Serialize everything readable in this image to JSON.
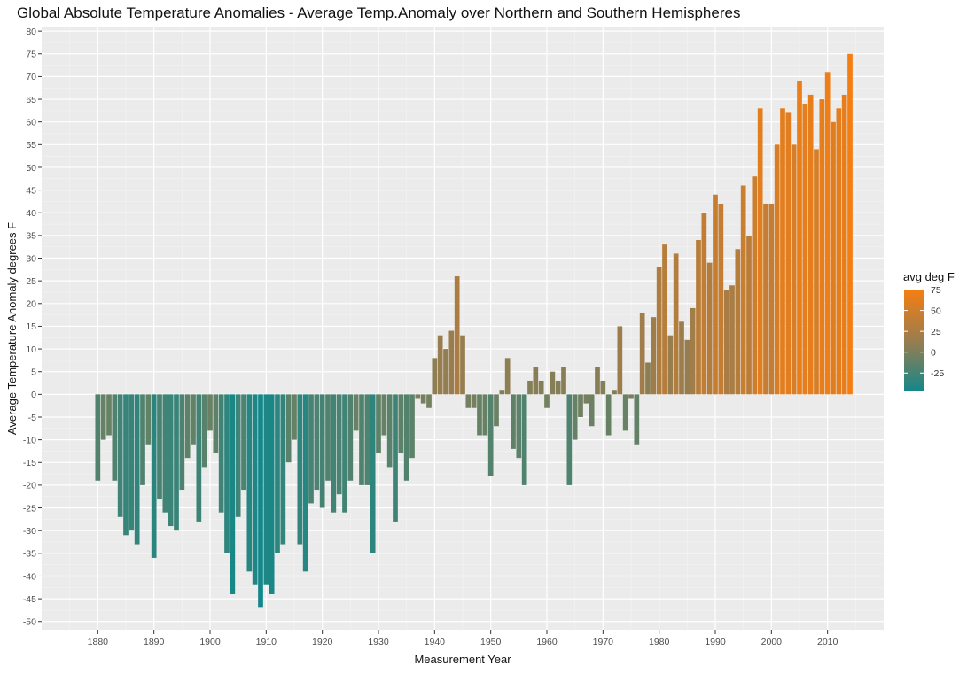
{
  "chart_data": {
    "type": "bar",
    "title": "Global Absolute Temperature Anomalies - Average Temp.Anomaly over Northern and Southern Hemispheres",
    "xlabel": "Measurement Year",
    "ylabel": "Average Temperature Anomaly degrees F",
    "xlim": [
      1870,
      2020
    ],
    "ylim": [
      -52,
      81
    ],
    "x_ticks": [
      "1880",
      "1890",
      "1900",
      "1910",
      "1920",
      "1930",
      "1940",
      "1950",
      "1960",
      "1970",
      "1980",
      "1990",
      "2000",
      "2010"
    ],
    "y_ticks": [
      "-50",
      "-45",
      "-40",
      "-35",
      "-30",
      "-25",
      "-20",
      "-15",
      "-10",
      "-5",
      "0",
      "5",
      "10",
      "15",
      "20",
      "25",
      "30",
      "35",
      "40",
      "45",
      "50",
      "55",
      "60",
      "65",
      "70",
      "75",
      "80"
    ],
    "x": [
      1880,
      1881,
      1882,
      1883,
      1884,
      1885,
      1886,
      1887,
      1888,
      1889,
      1890,
      1891,
      1892,
      1893,
      1894,
      1895,
      1896,
      1897,
      1898,
      1899,
      1900,
      1901,
      1902,
      1903,
      1904,
      1905,
      1906,
      1907,
      1908,
      1909,
      1910,
      1911,
      1912,
      1913,
      1914,
      1915,
      1916,
      1917,
      1918,
      1919,
      1920,
      1921,
      1922,
      1923,
      1924,
      1925,
      1926,
      1927,
      1928,
      1929,
      1930,
      1931,
      1932,
      1933,
      1934,
      1935,
      1936,
      1937,
      1938,
      1939,
      1940,
      1941,
      1942,
      1943,
      1944,
      1945,
      1946,
      1947,
      1948,
      1949,
      1950,
      1951,
      1952,
      1953,
      1954,
      1955,
      1956,
      1957,
      1958,
      1959,
      1960,
      1961,
      1962,
      1963,
      1964,
      1965,
      1966,
      1967,
      1968,
      1969,
      1970,
      1971,
      1972,
      1973,
      1974,
      1975,
      1976,
      1977,
      1978,
      1979,
      1980,
      1981,
      1982,
      1983,
      1984,
      1985,
      1986,
      1987,
      1988,
      1989,
      1990,
      1991,
      1992,
      1993,
      1994,
      1995,
      1996,
      1997,
      1998,
      1999,
      2000,
      2001,
      2002,
      2003,
      2004,
      2005,
      2006,
      2007,
      2008,
      2009,
      2010,
      2011,
      2012,
      2013,
      2014
    ],
    "values": [
      -19,
      -10,
      -9,
      -19,
      -27,
      -31,
      -30,
      -33,
      -20,
      -11,
      -36,
      -23,
      -26,
      -29,
      -30,
      -21,
      -14,
      -11,
      -28,
      -16,
      -8,
      -13,
      -26,
      -35,
      -44,
      -27,
      -21,
      -39,
      -42,
      -47,
      -42,
      -44,
      -35,
      -33,
      -15,
      -10,
      -33,
      -39,
      -24,
      -21,
      -25,
      -19,
      -26,
      -22,
      -26,
      -19,
      -8,
      -20,
      -20,
      -35,
      -13,
      -9,
      -16,
      -28,
      -13,
      -19,
      -14,
      -1,
      -2,
      -3,
      8,
      13,
      10,
      14,
      26,
      13,
      -3,
      -3,
      -9,
      -9,
      -18,
      -7,
      1,
      8,
      -12,
      -14,
      -20,
      3,
      6,
      3,
      -3,
      5,
      3,
      6,
      -20,
      -10,
      -5,
      -2,
      -7,
      6,
      3,
      -9,
      1,
      15,
      -8,
      -1,
      -11,
      18,
      7,
      17,
      28,
      33,
      13,
      31,
      16,
      12,
      19,
      34,
      40,
      29,
      44,
      42,
      23,
      24,
      32,
      46,
      35,
      48,
      63,
      42,
      42,
      55,
      63,
      62,
      55,
      69,
      64,
      66,
      54,
      65,
      71,
      60,
      63,
      66,
      75
    ],
    "legend": {
      "title": "avg deg F",
      "labels": [
        "75",
        "50",
        "25",
        "0",
        "-25"
      ],
      "label_values": [
        75,
        50,
        25,
        0,
        -25
      ],
      "range": [
        -47,
        75
      ],
      "placement": "right"
    },
    "colors": {
      "low": "#13878a",
      "mid": "#9a7d4e",
      "high": "#f57e12",
      "panel": "#ebebeb",
      "grid_major": "#ffffff",
      "grid_minor": "#f4f4f4"
    },
    "grid": true
  }
}
